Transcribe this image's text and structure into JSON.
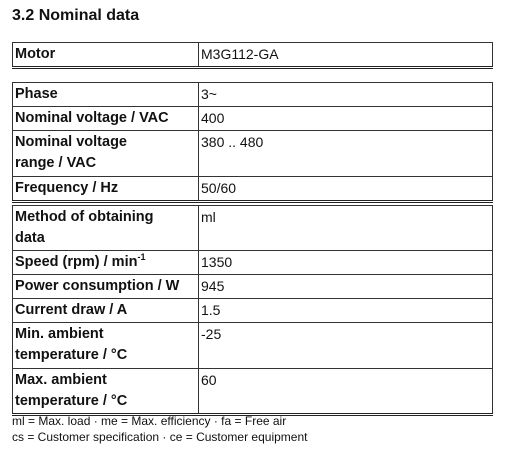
{
  "header": {
    "title": "3.2 Nominal data"
  },
  "tables": [
    {
      "rows": [
        {
          "label": [
            "Motor"
          ],
          "value": [
            "M3G112-GA"
          ]
        }
      ]
    },
    {
      "rows": [
        {
          "label": [
            "Phase"
          ],
          "value": [
            "3~"
          ]
        },
        {
          "label": [
            "Nominal voltage / VAC"
          ],
          "value": [
            "400"
          ]
        },
        {
          "label": [
            "Nominal voltage",
            "range / VAC"
          ],
          "value": [
            "380 .. 480"
          ]
        },
        {
          "label": [
            "Frequency / Hz"
          ],
          "value": [
            "50/60"
          ]
        }
      ]
    },
    {
      "rows": [
        {
          "label": [
            "Method of obtaining",
            "data"
          ],
          "value": [
            "ml"
          ]
        },
        {
          "label": [
            "Speed (rpm) / min"
          ],
          "label_sup": "-1",
          "value": [
            "1350"
          ]
        },
        {
          "label": [
            "Power consumption / W"
          ],
          "value": [
            "945"
          ]
        },
        {
          "label": [
            "Current draw / A"
          ],
          "value": [
            "1.5"
          ]
        },
        {
          "label": [
            "Min. ambient",
            "temperature / °C"
          ],
          "value": [
            "-25"
          ]
        },
        {
          "label": [
            "Max. ambient",
            "temperature / °C"
          ],
          "value": [
            "60"
          ]
        }
      ]
    }
  ],
  "footnotes": [
    "ml = Max. load · me = Max. efficiency · fa = Free air",
    "cs = Customer specification · ce = Customer equipment"
  ]
}
